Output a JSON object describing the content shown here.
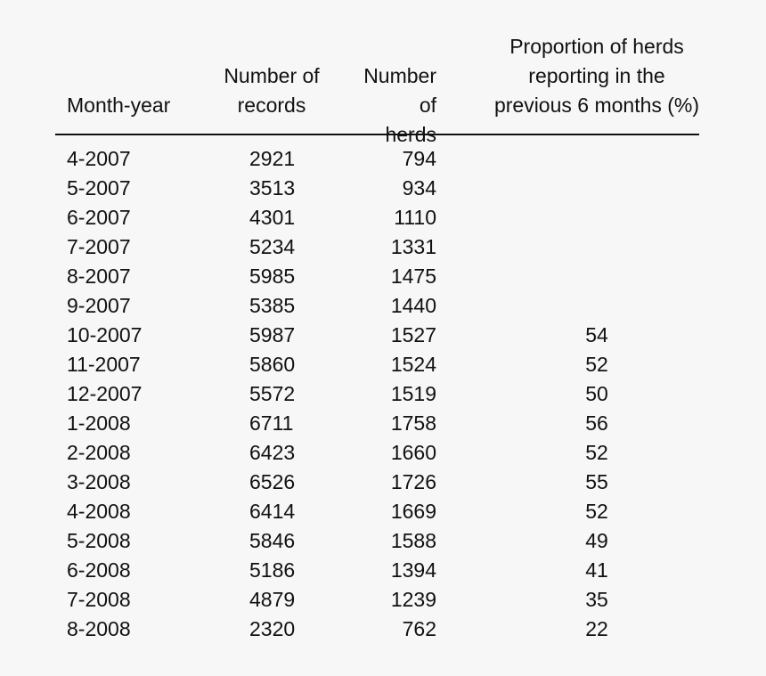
{
  "table": {
    "headers": [
      [
        "Month-year"
      ],
      [
        "Number of",
        "records"
      ],
      [
        "Number of",
        "herds"
      ],
      [
        "Proportion of herds",
        "reporting in the",
        "previous 6 months (%)"
      ]
    ],
    "rows": [
      [
        "4-2007",
        "2921",
        "794",
        ""
      ],
      [
        "5-2007",
        "3513",
        "934",
        ""
      ],
      [
        "6-2007",
        "4301",
        "1110",
        ""
      ],
      [
        "7-2007",
        "5234",
        "1331",
        ""
      ],
      [
        "8-2007",
        "5985",
        "1475",
        ""
      ],
      [
        "9-2007",
        "5385",
        "1440",
        ""
      ],
      [
        "10-2007",
        "5987",
        "1527",
        "54"
      ],
      [
        "11-2007",
        "5860",
        "1524",
        "52"
      ],
      [
        "12-2007",
        "5572",
        "1519",
        "50"
      ],
      [
        "1-2008",
        "6711",
        "1758",
        "56"
      ],
      [
        "2-2008",
        "6423",
        "1660",
        "52"
      ],
      [
        "3-2008",
        "6526",
        "1726",
        "55"
      ],
      [
        "4-2008",
        "6414",
        "1669",
        "52"
      ],
      [
        "5-2008",
        "5846",
        "1588",
        "49"
      ],
      [
        "6-2008",
        "5186",
        "1394",
        "41"
      ],
      [
        "7-2008",
        "4879",
        "1239",
        "35"
      ],
      [
        "8-2008",
        "2320",
        "762",
        "22"
      ]
    ]
  }
}
